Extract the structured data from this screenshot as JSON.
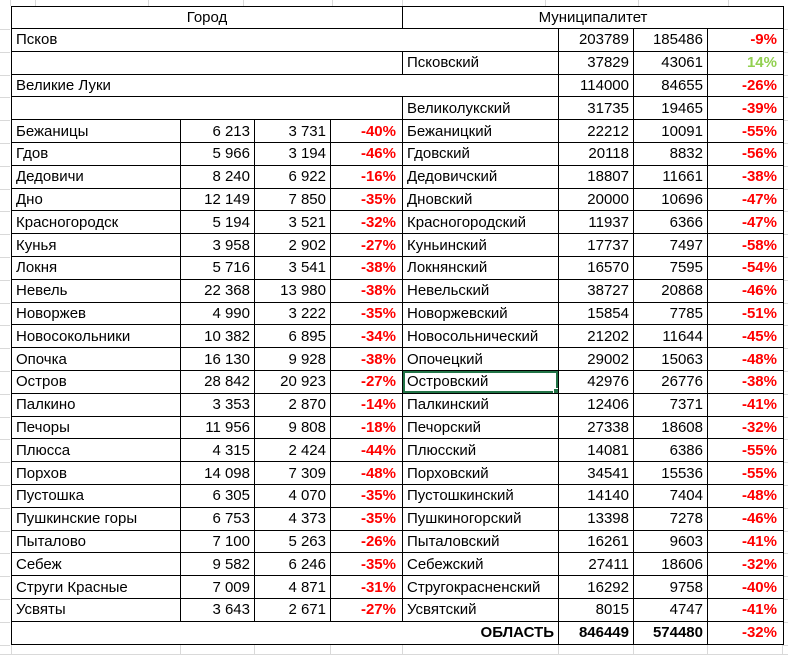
{
  "header": {
    "city": "Город",
    "municipality": "Муниципалитет"
  },
  "colors": {
    "negative_pct": "#ff0000",
    "positive_pct": "#92d050",
    "selection_border": "#217346"
  },
  "selected_cell": {
    "column": "muni_name",
    "row_name": "Островский"
  },
  "rows": [
    {
      "kind": "city_span",
      "name": "Псков",
      "v1": "203789",
      "v2": "185486",
      "pct": "-9%"
    },
    {
      "kind": "muni_only",
      "name": "Псковский",
      "v1": "37829",
      "v2": "43061",
      "pct": "14%"
    },
    {
      "kind": "city_span",
      "name": "Великие Луки",
      "v1": "114000",
      "v2": "84655",
      "pct": "-26%"
    },
    {
      "kind": "muni_only",
      "name": "Великолукский",
      "v1": "31735",
      "v2": "19465",
      "pct": "-39%"
    },
    {
      "kind": "pair",
      "city": {
        "name": "Бежаницы",
        "v1": "6 213",
        "v2": "3 731",
        "pct": "-40%"
      },
      "muni": {
        "name": "Бежаницкий",
        "v1": "22212",
        "v2": "10091",
        "pct": "-55%"
      }
    },
    {
      "kind": "pair",
      "city": {
        "name": "Гдов",
        "v1": "5 966",
        "v2": "3 194",
        "pct": "-46%"
      },
      "muni": {
        "name": "Гдовский",
        "v1": "20118",
        "v2": "8832",
        "pct": "-56%"
      }
    },
    {
      "kind": "pair",
      "city": {
        "name": "Дедовичи",
        "v1": "8 240",
        "v2": "6 922",
        "pct": "-16%"
      },
      "muni": {
        "name": "Дедовичский",
        "v1": "18807",
        "v2": "11661",
        "pct": "-38%"
      }
    },
    {
      "kind": "pair",
      "city": {
        "name": "Дно",
        "v1": "12 149",
        "v2": "7 850",
        "pct": "-35%"
      },
      "muni": {
        "name": "Дновский",
        "v1": "20000",
        "v2": "10696",
        "pct": "-47%"
      }
    },
    {
      "kind": "pair",
      "city": {
        "name": "Красногородск",
        "v1": "5 194",
        "v2": "3 521",
        "pct": "-32%"
      },
      "muni": {
        "name": "Красногородский",
        "v1": "11937",
        "v2": "6366",
        "pct": "-47%"
      }
    },
    {
      "kind": "pair",
      "city": {
        "name": "Кунья",
        "v1": "3 958",
        "v2": "2 902",
        "pct": "-27%"
      },
      "muni": {
        "name": "Куньинский",
        "v1": "17737",
        "v2": "7497",
        "pct": "-58%"
      }
    },
    {
      "kind": "pair",
      "city": {
        "name": "Локня",
        "v1": "5 716",
        "v2": "3 541",
        "pct": "-38%"
      },
      "muni": {
        "name": "Локнянский",
        "v1": "16570",
        "v2": "7595",
        "pct": "-54%"
      }
    },
    {
      "kind": "pair",
      "city": {
        "name": "Невель",
        "v1": "22 368",
        "v2": "13 980",
        "pct": "-38%"
      },
      "muni": {
        "name": "Невельский",
        "v1": "38727",
        "v2": "20868",
        "pct": "-46%"
      }
    },
    {
      "kind": "pair",
      "city": {
        "name": "Новоржев",
        "v1": "4 990",
        "v2": "3 222",
        "pct": "-35%"
      },
      "muni": {
        "name": "Новоржевский",
        "v1": "15854",
        "v2": "7785",
        "pct": "-51%"
      }
    },
    {
      "kind": "pair",
      "city": {
        "name": "Новосокольники",
        "v1": "10 382",
        "v2": "6 895",
        "pct": "-34%"
      },
      "muni": {
        "name": "Новосольнический",
        "v1": "21202",
        "v2": "11644",
        "pct": "-45%"
      }
    },
    {
      "kind": "pair",
      "city": {
        "name": "Опочка",
        "v1": "16 130",
        "v2": "9 928",
        "pct": "-38%"
      },
      "muni": {
        "name": "Опочецкий",
        "v1": "29002",
        "v2": "15063",
        "pct": "-48%"
      }
    },
    {
      "kind": "pair",
      "city": {
        "name": "Остров",
        "v1": "28 842",
        "v2": "20 923",
        "pct": "-27%"
      },
      "muni": {
        "name": "Островский",
        "v1": "42976",
        "v2": "26776",
        "pct": "-38%"
      }
    },
    {
      "kind": "pair",
      "city": {
        "name": "Палкино",
        "v1": "3 353",
        "v2": "2 870",
        "pct": "-14%"
      },
      "muni": {
        "name": "Палкинский",
        "v1": "12406",
        "v2": "7371",
        "pct": "-41%"
      }
    },
    {
      "kind": "pair",
      "city": {
        "name": "Печоры",
        "v1": "11 956",
        "v2": "9 808",
        "pct": "-18%"
      },
      "muni": {
        "name": "Печорский",
        "v1": "27338",
        "v2": "18608",
        "pct": "-32%"
      }
    },
    {
      "kind": "pair",
      "city": {
        "name": "Плюсса",
        "v1": "4 315",
        "v2": "2 424",
        "pct": "-44%"
      },
      "muni": {
        "name": "Плюсский",
        "v1": "14081",
        "v2": "6386",
        "pct": "-55%"
      }
    },
    {
      "kind": "pair",
      "city": {
        "name": "Порхов",
        "v1": "14 098",
        "v2": "7 309",
        "pct": "-48%"
      },
      "muni": {
        "name": "Порховский",
        "v1": "34541",
        "v2": "15536",
        "pct": "-55%"
      }
    },
    {
      "kind": "pair",
      "city": {
        "name": "Пустошка",
        "v1": "6 305",
        "v2": "4 070",
        "pct": "-35%"
      },
      "muni": {
        "name": "Пустошкинский",
        "v1": "14140",
        "v2": "7404",
        "pct": "-48%"
      }
    },
    {
      "kind": "pair",
      "city": {
        "name": "Пушкинские горы",
        "v1": "6 753",
        "v2": "4 373",
        "pct": "-35%"
      },
      "muni": {
        "name": "Пушкиногорский",
        "v1": "13398",
        "v2": "7278",
        "pct": "-46%"
      }
    },
    {
      "kind": "pair",
      "city": {
        "name": "Пыталово",
        "v1": "7 100",
        "v2": "5 263",
        "pct": "-26%"
      },
      "muni": {
        "name": "Пыталовский",
        "v1": "16261",
        "v2": "9603",
        "pct": "-41%"
      }
    },
    {
      "kind": "pair",
      "city": {
        "name": "Себеж",
        "v1": "9 582",
        "v2": "6 246",
        "pct": "-35%"
      },
      "muni": {
        "name": "Себежский",
        "v1": "27411",
        "v2": "18606",
        "pct": "-32%"
      }
    },
    {
      "kind": "pair",
      "city": {
        "name": "Струги Красные",
        "v1": "7 009",
        "v2": "4 871",
        "pct": "-31%"
      },
      "muni": {
        "name": "Стругокрасненский",
        "v1": "16292",
        "v2": "9758",
        "pct": "-40%"
      }
    },
    {
      "kind": "pair",
      "city": {
        "name": "Усвяты",
        "v1": "3 643",
        "v2": "2 671",
        "pct": "-27%"
      },
      "muni": {
        "name": "Усвятский",
        "v1": "8015",
        "v2": "4747",
        "pct": "-41%"
      }
    },
    {
      "kind": "total",
      "label": "ОБЛАСТЬ",
      "v1": "846449",
      "v2": "574480",
      "pct": "-32%"
    }
  ]
}
